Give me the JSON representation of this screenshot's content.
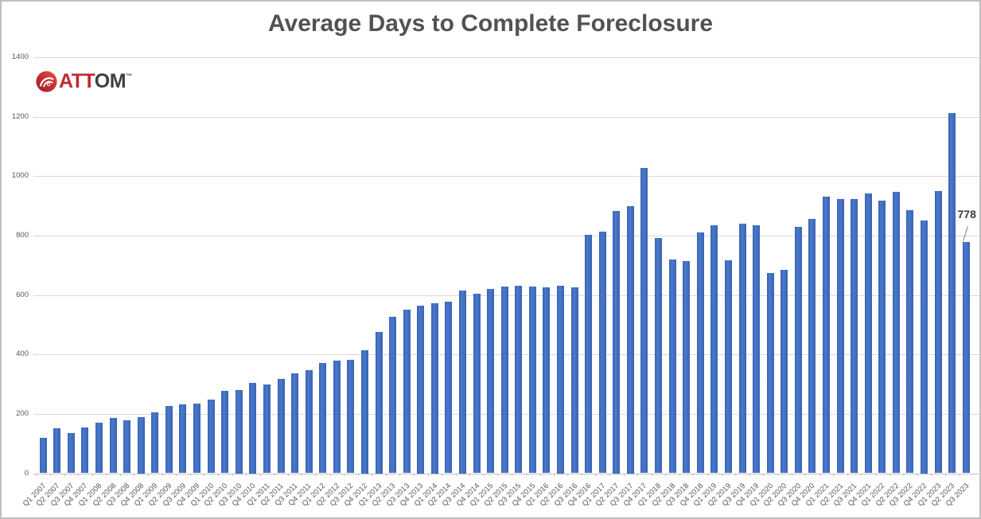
{
  "logo": {
    "text_red": "ATT",
    "text_dark": "OM",
    "trademark": "™",
    "red_color": "#BE2A33",
    "dark_color": "#3F3F42"
  },
  "chart_data": {
    "type": "bar",
    "title": "Average Days to Complete Foreclosure",
    "xlabel": "",
    "ylabel": "",
    "ylim": [
      0,
      1400
    ],
    "y_ticks": [
      0,
      200,
      400,
      600,
      800,
      1000,
      1200,
      1400
    ],
    "grid": true,
    "legend": "none",
    "bar_color": "#4472C4",
    "gridline_color": "#D9D9D9",
    "axis_line_color": "#BFBFBF",
    "tick_label_color": "#595959",
    "title_color": "#525252",
    "data_label_color": "#3B3B3B",
    "last_point_label": "778",
    "categories": [
      "Q1 2007",
      "Q2 2007",
      "Q3 2007",
      "Q4 2007",
      "Q1 2008",
      "Q2 2008",
      "Q3 2008",
      "Q4 2008",
      "Q1 2009",
      "Q2 2009",
      "Q3 2009",
      "Q4 2009",
      "Q1 2010",
      "Q2 2010",
      "Q3 2010",
      "Q4 2010",
      "Q1 2011",
      "Q2 2011",
      "Q3 2011",
      "Q4 2011",
      "Q1 2012",
      "Q2 2012",
      "Q3 2012",
      "Q4 2012",
      "Q1 2013",
      "Q2 2013",
      "Q3 2013",
      "Q4 2013",
      "Q1 2014",
      "Q2 2014",
      "Q3 2014",
      "Q4 2014",
      "Q1 2015",
      "Q2 2015",
      "Q3 2015",
      "Q4 2015",
      "Q1 2016",
      "Q2 2016",
      "Q3 2016",
      "Q4 2016",
      "Q1 2017",
      "Q2 2017",
      "Q3 2017",
      "Q4 2017",
      "Q1 2018",
      "Q2 2018",
      "Q3 2018",
      "Q4 2018",
      "Q1 2019",
      "Q2 2019",
      "Q3 2019",
      "Q4 2019",
      "Q1 2020",
      "Q2 2020",
      "Q3 2020",
      "Q4 2020",
      "Q1 2021",
      "Q2 2021",
      "Q3 2021",
      "Q4 2021",
      "Q1 2022",
      "Q2 2022",
      "Q3 2022",
      "Q4 2022",
      "Q1 2023",
      "Q2 2023",
      "Q3 2023"
    ],
    "values": [
      119,
      151,
      136,
      155,
      171,
      186,
      177,
      189,
      204,
      227,
      232,
      235,
      248,
      277,
      280,
      304,
      299,
      318,
      336,
      348,
      370,
      378,
      382,
      414,
      477,
      526,
      551,
      564,
      572,
      577,
      615,
      604,
      620,
      629,
      630,
      629,
      625,
      631,
      625,
      803,
      814,
      883,
      899,
      1027,
      791,
      720,
      713,
      811,
      835,
      716,
      841,
      834,
      673,
      685,
      830,
      857,
      930,
      922,
      924,
      941,
      917,
      948,
      885,
      852,
      950,
      1212,
      778
    ]
  }
}
